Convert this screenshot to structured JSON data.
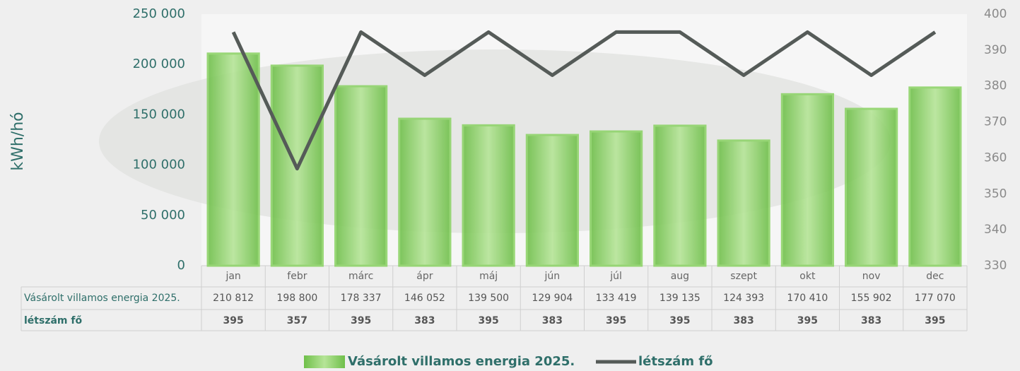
{
  "chart_data": {
    "type": "combo",
    "ylabel": "kWh/hó",
    "categories": [
      "jan",
      "febr",
      "márc",
      "ápr",
      "máj",
      "jún",
      "júl",
      "aug",
      "szept",
      "okt",
      "nov",
      "dec"
    ],
    "series": [
      {
        "name": "Vásárolt villamos energia 2025.",
        "color": "#8fd46a",
        "values": [
          210812,
          198800,
          178337,
          146052,
          139500,
          129904,
          133419,
          139135,
          124393,
          170410,
          155902,
          177070
        ],
        "value_labels": [
          "210 812",
          "198 800",
          "178 337",
          "146 052",
          "139 500",
          "129 904",
          "133 419",
          "139 135",
          "124 393",
          "170 410",
          "155 902",
          "177 070"
        ]
      },
      {
        "name": "létszám fő",
        "color": "#555b58",
        "axis": "y2",
        "values": [
          395,
          357,
          395,
          383,
          395,
          383,
          395,
          395,
          383,
          395,
          383,
          395
        ]
      }
    ],
    "ylim": [
      0,
      250000
    ],
    "yticks": [
      {
        "value": 0,
        "label": "0"
      },
      {
        "value": 50000,
        "label": "50 000"
      },
      {
        "value": 100000,
        "label": "100 000"
      },
      {
        "value": 150000,
        "label": "150 000"
      },
      {
        "value": 200000,
        "label": "200 000"
      },
      {
        "value": 250000,
        "label": "250 000"
      }
    ],
    "y2lim": [
      330,
      400
    ],
    "y2ticks": [
      330,
      340,
      350,
      360,
      370,
      380,
      390,
      400
    ]
  }
}
